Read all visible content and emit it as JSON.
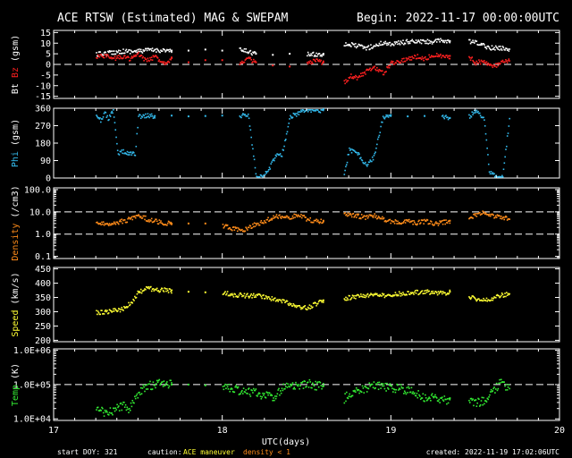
{
  "header": {
    "title": "ACE RTSW (Estimated) MAG & SWEPAM",
    "begin": "Begin: 2022-11-17 00:00:00UTC"
  },
  "footer": {
    "start_doy": "start DOY: 321",
    "caution": "caution:",
    "maneuver": "ACE maneuver",
    "density_note": "density < 1",
    "created": "created: 2022-11-19 17:02:06UTC"
  },
  "colors": {
    "bt": "#ffffff",
    "bz": "#ff2020",
    "phi": "#33bbee",
    "density": "#ff8c1a",
    "speed": "#ffff33",
    "temp": "#33ee33",
    "maneuver": "#ffff33",
    "density_note": "#ff8c1a",
    "axes": "#ffffff"
  },
  "chart_data": {
    "type": "scatter",
    "x_label": "UTC(days)",
    "x_ticks": [
      "17",
      "18",
      "19",
      "20"
    ],
    "xlim": [
      17,
      20
    ],
    "gaps": [
      [
        17.0,
        17.22
      ],
      [
        18.62,
        18.72
      ],
      [
        19.36,
        19.46
      ],
      [
        19.72,
        20.0
      ]
    ],
    "panels": [
      {
        "id": "mag",
        "ylabel_parts": [
          "Bt",
          "Bz",
          "(gsm)"
        ],
        "ylim": [
          -16,
          16
        ],
        "ticks": [
          "15",
          "10",
          "5",
          "0",
          "-5",
          "-10",
          "-15"
        ],
        "tick_values": [
          15,
          10,
          5,
          0,
          -5,
          -10,
          -15
        ],
        "ref_lines": [
          0
        ],
        "series": [
          {
            "name": "Bt",
            "color_key": "bt",
            "x": [
              17.25,
              17.3,
              17.35,
              17.4,
              17.45,
              17.5,
              17.55,
              17.6,
              17.65,
              17.7,
              17.8,
              17.9,
              18.0,
              18.1,
              18.15,
              18.2,
              18.3,
              18.4,
              18.5,
              18.55,
              18.6,
              18.72,
              18.76,
              18.8,
              18.85,
              18.9,
              18.95,
              19.0,
              19.05,
              19.1,
              19.15,
              19.2,
              19.25,
              19.3,
              19.35,
              19.46,
              19.5,
              19.55,
              19.6,
              19.65,
              19.7
            ],
            "y": [
              5,
              5.5,
              6,
              6.5,
              6.5,
              6.5,
              7,
              7,
              7,
              6.5,
              6.5,
              7,
              6.5,
              7,
              6.5,
              5,
              4.5,
              5,
              5,
              5,
              5,
              10,
              9.5,
              9,
              8,
              9,
              10.5,
              10,
              10.5,
              11,
              11,
              11,
              11,
              11.5,
              11,
              11,
              10.5,
              9,
              8,
              8,
              7.5
            ]
          },
          {
            "name": "Bz",
            "color_key": "bz",
            "x": [
              17.25,
              17.3,
              17.35,
              17.4,
              17.45,
              17.5,
              17.55,
              17.6,
              17.65,
              17.7,
              17.8,
              17.9,
              18.0,
              18.1,
              18.15,
              18.2,
              18.3,
              18.4,
              18.5,
              18.55,
              18.6,
              18.72,
              18.76,
              18.8,
              18.85,
              18.9,
              18.95,
              19.0,
              19.05,
              19.1,
              19.15,
              19.2,
              19.25,
              19.3,
              19.35,
              19.46,
              19.5,
              19.55,
              19.6,
              19.65,
              19.7
            ],
            "y": [
              4,
              4.5,
              3,
              4,
              3,
              5,
              2,
              4,
              1,
              3,
              1,
              2,
              2,
              1,
              3,
              1,
              -0.5,
              -1,
              0.5,
              2,
              1,
              -8,
              -5,
              -6,
              -3,
              -1,
              -4,
              1,
              2,
              3,
              4,
              3,
              5,
              4,
              4,
              4,
              1,
              2,
              -1,
              1,
              2
            ]
          }
        ]
      },
      {
        "id": "phi",
        "ylabel_parts": [
          "Phi",
          "(gsm)"
        ],
        "ylim": [
          0,
          360
        ],
        "ticks": [
          "360",
          "270",
          "180",
          "90",
          "0"
        ],
        "tick_values": [
          360,
          270,
          180,
          90,
          0
        ],
        "ref_lines": [],
        "series": [
          {
            "name": "Phi",
            "color_key": "phi",
            "x": [
              17.25,
              17.28,
              17.3,
              17.32,
              17.35,
              17.38,
              17.4,
              17.42,
              17.45,
              17.48,
              17.5,
              17.55,
              17.6,
              17.7,
              17.8,
              17.9,
              18.0,
              18.1,
              18.15,
              18.2,
              18.25,
              18.28,
              18.3,
              18.33,
              18.35,
              18.4,
              18.45,
              18.5,
              18.55,
              18.6,
              18.72,
              18.75,
              18.8,
              18.84,
              18.86,
              18.9,
              18.95,
              19.0,
              19.1,
              19.2,
              19.3,
              19.35,
              19.46,
              19.5,
              19.55,
              19.58,
              19.6,
              19.63,
              19.66,
              19.7
            ],
            "y": [
              320,
              300,
              340,
              310,
              350,
              120,
              140,
              135,
              130,
              125,
              320,
              325,
              320,
              322,
              318,
              320,
              322,
              325,
              330,
              5,
              20,
              60,
              100,
              130,
              120,
              320,
              340,
              355,
              350,
              355,
              20,
              150,
              130,
              80,
              70,
              120,
              320,
              325,
              318,
              320,
              320,
              310,
              320,
              350,
              310,
              40,
              20,
              5,
              10,
              310
            ]
          }
        ]
      },
      {
        "id": "density",
        "ylabel_parts": [
          "Density",
          "(/cm3)"
        ],
        "log": true,
        "ylim": [
          0.08,
          120
        ],
        "ticks": [
          "100.0",
          "10.0",
          "1.0",
          "0.1"
        ],
        "tick_values": [
          100,
          10,
          1,
          0.1
        ],
        "ref_lines": [
          10,
          1
        ],
        "series": [
          {
            "name": "Density",
            "color_key": "density",
            "x": [
              17.25,
              17.3,
              17.35,
              17.4,
              17.45,
              17.5,
              17.55,
              17.6,
              17.65,
              17.7,
              17.8,
              17.9,
              18.0,
              18.05,
              18.1,
              18.15,
              18.2,
              18.25,
              18.3,
              18.35,
              18.4,
              18.45,
              18.5,
              18.55,
              18.6,
              18.72,
              18.76,
              18.8,
              18.85,
              18.9,
              18.95,
              19.0,
              19.05,
              19.1,
              19.15,
              19.2,
              19.25,
              19.3,
              19.35,
              19.46,
              19.5,
              19.55,
              19.6,
              19.65,
              19.7
            ],
            "y": [
              3,
              3,
              3.5,
              4,
              5,
              8,
              5,
              4,
              3.5,
              3,
              3,
              3,
              2.5,
              2,
              1.5,
              2,
              3,
              4,
              6,
              7,
              6,
              8,
              5,
              4,
              4,
              9,
              8,
              7,
              6,
              7,
              5,
              4,
              3.5,
              4,
              3.5,
              4,
              3,
              3.5,
              4,
              5,
              8,
              10,
              7,
              6,
              5
            ]
          }
        ]
      },
      {
        "id": "speed",
        "ylabel_parts": [
          "Speed",
          "(km/s)"
        ],
        "ylim": [
          195,
          455
        ],
        "ticks": [
          "450",
          "400",
          "350",
          "300",
          "250",
          "200"
        ],
        "tick_values": [
          450,
          400,
          350,
          300,
          250,
          200
        ],
        "ref_lines": [],
        "series": [
          {
            "name": "Speed",
            "color_key": "speed",
            "x": [
              17.25,
              17.3,
              17.35,
              17.4,
              17.45,
              17.5,
              17.55,
              17.6,
              17.65,
              17.7,
              17.8,
              17.9,
              18.0,
              18.05,
              18.1,
              18.15,
              18.2,
              18.25,
              18.3,
              18.35,
              18.4,
              18.45,
              18.5,
              18.55,
              18.6,
              18.72,
              18.76,
              18.8,
              18.85,
              18.9,
              18.95,
              19.0,
              19.05,
              19.1,
              19.15,
              19.2,
              19.25,
              19.3,
              19.35,
              19.46,
              19.5,
              19.55,
              19.6,
              19.65,
              19.7
            ],
            "y": [
              300,
              302,
              305,
              310,
              330,
              370,
              385,
              380,
              378,
              375,
              370,
              368,
              370,
              362,
              360,
              358,
              360,
              355,
              345,
              340,
              330,
              320,
              315,
              330,
              340,
              350,
              352,
              355,
              360,
              362,
              358,
              360,
              365,
              368,
              370,
              372,
              370,
              368,
              370,
              355,
              348,
              345,
              350,
              360,
              365
            ]
          }
        ]
      },
      {
        "id": "temp",
        "ylabel_parts": [
          "Temp",
          "(K)"
        ],
        "log": true,
        "ylim": [
          9000,
          1100000
        ],
        "ticks": [
          "1.0E+06",
          "1.0E+05",
          "1.0E+04"
        ],
        "tick_values": [
          1000000,
          100000,
          10000
        ],
        "ref_lines": [
          100000
        ],
        "series": [
          {
            "name": "Temp",
            "color_key": "temp",
            "x": [
              17.25,
              17.3,
              17.35,
              17.4,
              17.45,
              17.5,
              17.55,
              17.6,
              17.65,
              17.7,
              17.8,
              17.9,
              18.0,
              18.05,
              18.1,
              18.15,
              18.2,
              18.25,
              18.3,
              18.35,
              18.4,
              18.45,
              18.5,
              18.55,
              18.6,
              18.72,
              18.76,
              18.8,
              18.85,
              18.9,
              18.95,
              19.0,
              19.05,
              19.1,
              19.15,
              19.2,
              19.25,
              19.3,
              19.35,
              19.46,
              19.5,
              19.55,
              19.6,
              19.65,
              19.7
            ],
            "y": [
              20000,
              15000,
              18000,
              25000,
              20000,
              60000,
              90000,
              110000,
              120000,
              100000,
              100000,
              95000,
              90000,
              80000,
              70000,
              65000,
              60000,
              50000,
              40000,
              80000,
              100000,
              90000,
              110000,
              100000,
              90000,
              40000,
              60000,
              70000,
              80000,
              100000,
              90000,
              85000,
              80000,
              70000,
              60000,
              40000,
              50000,
              35000,
              40000,
              40000,
              30000,
              35000,
              60000,
              120000,
              80000
            ]
          }
        ]
      }
    ]
  }
}
